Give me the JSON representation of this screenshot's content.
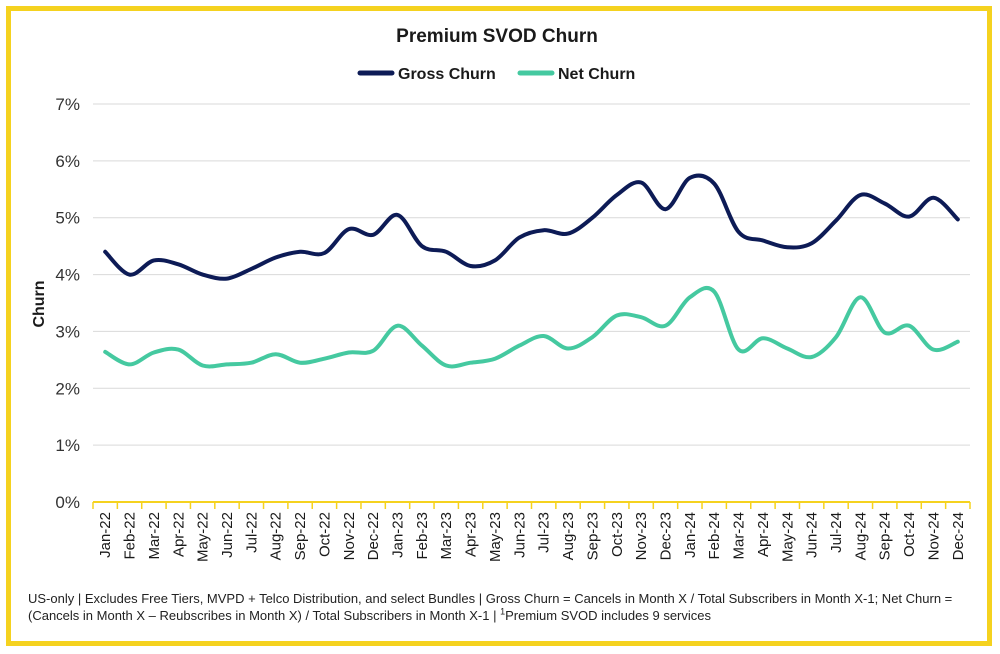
{
  "chart_data": {
    "type": "line",
    "title": "Premium SVOD Churn",
    "xlabel": "",
    "ylabel": "Churn",
    "ylim": [
      0,
      7
    ],
    "yticks": [
      "0%",
      "1%",
      "2%",
      "3%",
      "4%",
      "5%",
      "6%",
      "7%"
    ],
    "grid": true,
    "legend_position": "top-center",
    "categories": [
      "Jan-22",
      "Feb-22",
      "Mar-22",
      "Apr-22",
      "May-22",
      "Jun-22",
      "Jul-22",
      "Aug-22",
      "Sep-22",
      "Oct-22",
      "Nov-22",
      "Dec-22",
      "Jan-23",
      "Feb-23",
      "Mar-23",
      "Apr-23",
      "May-23",
      "Jun-23",
      "Jul-23",
      "Aug-23",
      "Sep-23",
      "Oct-23",
      "Nov-23",
      "Dec-23",
      "Jan-24",
      "Feb-24",
      "Mar-24",
      "Apr-24",
      "May-24",
      "Jun-24",
      "Jul-24",
      "Aug-24",
      "Sep-24",
      "Oct-24",
      "Nov-24",
      "Dec-24"
    ],
    "series": [
      {
        "name": "Gross Churn",
        "color": "#0d1b56",
        "values": [
          4.4,
          4.0,
          4.25,
          4.18,
          4.0,
          3.93,
          4.1,
          4.3,
          4.4,
          4.38,
          4.8,
          4.7,
          5.05,
          4.5,
          4.4,
          4.15,
          4.25,
          4.65,
          4.78,
          4.72,
          5.0,
          5.4,
          5.62,
          5.15,
          5.7,
          5.6,
          4.75,
          4.6,
          4.48,
          4.55,
          4.95,
          5.4,
          5.25,
          5.02,
          5.35,
          4.97
        ]
      },
      {
        "name": "Net Churn",
        "color": "#45c9a0",
        "values": [
          2.64,
          2.42,
          2.63,
          2.68,
          2.4,
          2.42,
          2.45,
          2.6,
          2.45,
          2.52,
          2.63,
          2.66,
          3.1,
          2.75,
          2.4,
          2.45,
          2.52,
          2.75,
          2.92,
          2.7,
          2.9,
          3.28,
          3.25,
          3.1,
          3.6,
          3.7,
          2.68,
          2.88,
          2.7,
          2.55,
          2.9,
          3.6,
          2.98,
          3.1,
          2.68,
          2.82
        ]
      }
    ]
  },
  "footnote": {
    "text": "US-only | Excludes Free Tiers, MVPD + Telco Distribution, and select Bundles | Gross Churn = Cancels in Month X / Total Subscribers in Month X-1; Net Churn = (Cancels in Month X – Reubscribes in Month X) / Total Subscribers in Month X-1 | ",
    "superscript": "1",
    "tail": "Premium SVOD includes 9 services"
  }
}
